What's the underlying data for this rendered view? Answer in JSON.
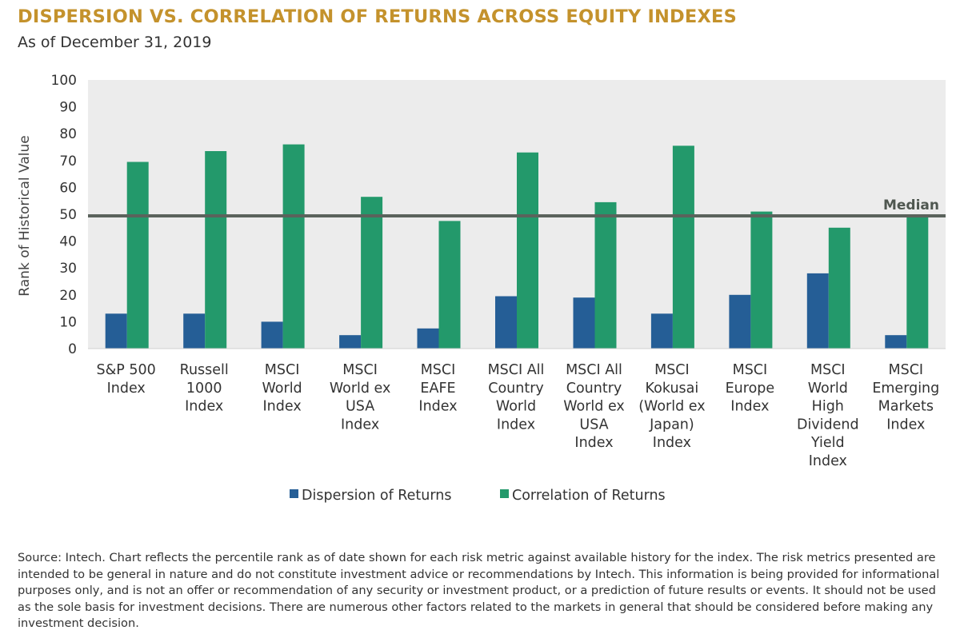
{
  "title": "DISPERSION VS. CORRELATION OF RETURNS ACROSS EQUITY INDEXES",
  "subtitle": "As of December 31, 2019",
  "source_note": "Source: Intech. Chart reflects the percentile rank as of date shown for each risk metric against available history for the index. The risk metrics presented are intended to be general in nature and do not constitute investment advice or recommendations by Intech. This information is being provided for informational purposes only, and is not an offer or recommendation of any security or investment product, or a prediction of future results or events. It should not be used as the sole basis for investment decisions. There are numerous other factors related to the markets in general that should be considered before making any investment decision.",
  "colors": {
    "title": "#c4922c",
    "dispersion": "#255e96",
    "correlation": "#23996b",
    "median_line": "#5b635c",
    "plot_background": "#ececec"
  },
  "chart_data": {
    "type": "bar",
    "title": "DISPERSION VS. CORRELATION OF RETURNS ACROSS EQUITY INDEXES",
    "subtitle": "As of December 31, 2019",
    "xlabel": "",
    "ylabel": "Rank of Historical Value",
    "ylim": [
      0,
      100
    ],
    "yticks": [
      0,
      10,
      20,
      30,
      40,
      50,
      60,
      70,
      80,
      90,
      100
    ],
    "grid": false,
    "legend_position": "bottom-center",
    "categories": [
      [
        "S&P 500",
        "Index"
      ],
      [
        "Russell",
        "1000",
        "Index"
      ],
      [
        "MSCI",
        "World",
        "Index"
      ],
      [
        "MSCI",
        "World ex",
        "USA",
        "Index"
      ],
      [
        "MSCI",
        "EAFE",
        "Index"
      ],
      [
        "MSCI All",
        "Country",
        "World",
        "Index"
      ],
      [
        "MSCI All",
        "Country",
        "World ex",
        "USA",
        "Index"
      ],
      [
        "MSCI",
        "Kokusai",
        "(World ex",
        "Japan)",
        "Index"
      ],
      [
        "MSCI",
        "Europe",
        "Index"
      ],
      [
        "MSCI",
        "World",
        "High",
        "Dividend",
        "Yield",
        "Index"
      ],
      [
        "MSCI",
        "Emerging",
        "Markets",
        "Index"
      ]
    ],
    "series": [
      {
        "name": "Dispersion of Returns",
        "color": "#255e96",
        "values": [
          13,
          13,
          10,
          5,
          7.5,
          19.5,
          19,
          13,
          20,
          28,
          5
        ]
      },
      {
        "name": "Correlation of Returns",
        "color": "#23996b",
        "values": [
          69.5,
          73.5,
          76,
          56.5,
          47.5,
          73,
          54.5,
          75.5,
          51,
          45,
          50
        ]
      }
    ],
    "reference_line": {
      "label": "Median",
      "value": 50
    }
  }
}
